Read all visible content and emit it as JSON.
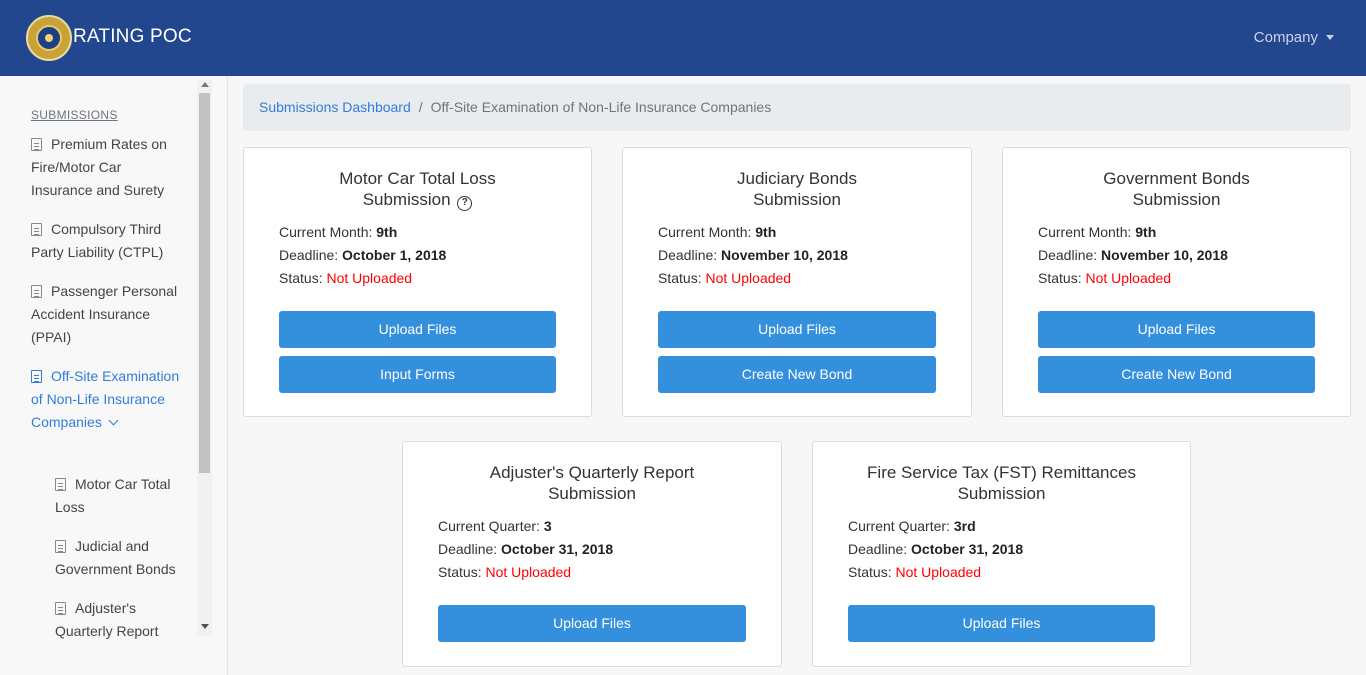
{
  "navbar": {
    "brand": "RATING POC",
    "company_label": "Company"
  },
  "sidebar": {
    "heading": "SUBMISSIONS",
    "items": [
      {
        "label": "Premium Rates on Fire/Motor Car Insurance and Surety"
      },
      {
        "label": "Compulsory Third Party Liability (CTPL)"
      },
      {
        "label": "Passenger Personal Accident Insurance (PPAI)"
      },
      {
        "label": "Off-Site Examination of Non-Life Insurance Companies"
      }
    ],
    "subitems": [
      {
        "label": "Motor Car Total Loss"
      },
      {
        "label": "Judicial and Government Bonds"
      },
      {
        "label": "Adjuster's Quarterly Report"
      }
    ]
  },
  "breadcrumb": {
    "link": "Submissions Dashboard",
    "separator": "/",
    "current": "Off-Site Examination of Non-Life Insurance Companies"
  },
  "labels": {
    "current_month": "Current Month:",
    "current_quarter": "Current Quarter:",
    "deadline": "Deadline:",
    "status": "Status:",
    "help": "?"
  },
  "cards": [
    {
      "title1": "Motor Car Total Loss",
      "title2": "Submission",
      "period": "9th",
      "deadline": "October 1, 2018",
      "status": "Not Uploaded",
      "btn1": "Upload Files",
      "btn2": "Input Forms"
    },
    {
      "title1": "Judiciary Bonds",
      "title2": "Submission",
      "period": "9th",
      "deadline": "November 10, 2018",
      "status": "Not Uploaded",
      "btn1": "Upload Files",
      "btn2": "Create New Bond"
    },
    {
      "title1": "Government Bonds",
      "title2": "Submission",
      "period": "9th",
      "deadline": "November 10, 2018",
      "status": "Not Uploaded",
      "btn1": "Upload Files",
      "btn2": "Create New Bond"
    },
    {
      "title1": "Adjuster's Quarterly Report",
      "title2": "Submission",
      "period": "3",
      "deadline": "October 31, 2018",
      "status": "Not Uploaded",
      "btn1": "Upload Files"
    },
    {
      "title1": "Fire Service Tax (FST) Remittances",
      "title2": "Submission",
      "period": "3rd",
      "deadline": "October 31, 2018",
      "status": "Not Uploaded",
      "btn1": "Upload Files"
    }
  ],
  "colors": {
    "navbar": "#23478f",
    "primary_button": "#3490dc",
    "link": "#2f7ddb",
    "status_error": "#ff0000"
  },
  "icons": {
    "logo": "seal-logo",
    "company_caret": "caret-down-icon",
    "sidebar_item": "document-icon",
    "expand": "chevron-down-icon",
    "help": "question-circle-icon"
  }
}
